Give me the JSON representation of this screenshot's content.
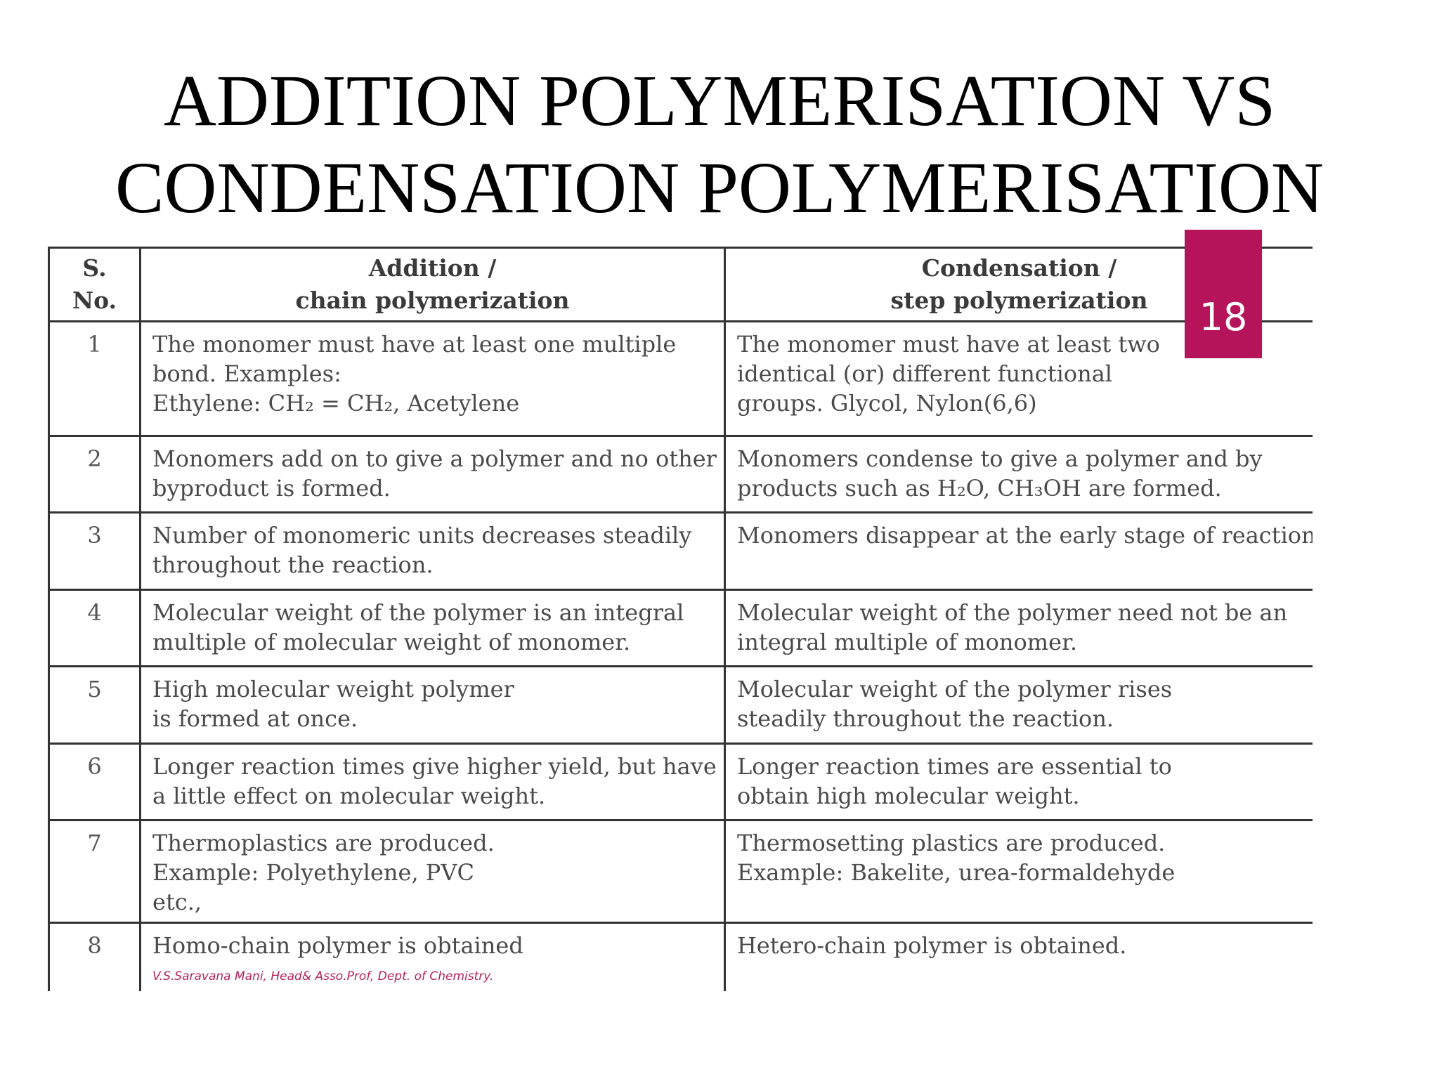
{
  "title": {
    "line1": "ADDITION POLYMERISATION VS",
    "line2": "CONDENSATION POLYMERISATION"
  },
  "page_badge": "18",
  "table": {
    "headers": {
      "sno": [
        "S.",
        "No."
      ],
      "addition": [
        "Addition /",
        "chain polymerization"
      ],
      "condensation": [
        "Condensation /",
        "step polymerization"
      ]
    },
    "rows": [
      {
        "sno": "1",
        "addition": [
          "The monomer must have at least one multiple",
          "bond. Examples:",
          "Ethylene: CH₂ = CH₂,  Acetylene"
        ],
        "condensation": [
          "The monomer must have at least two",
          "identical (or) different functional",
          "groups. Glycol, Nylon(6,6)"
        ]
      },
      {
        "sno": "2",
        "addition": [
          "Monomers add on to give a polymer and no other",
          "byproduct is formed."
        ],
        "condensation": [
          "Monomers condense to give a polymer and by",
          "products such as H₂O, CH₃OH are formed."
        ]
      },
      {
        "sno": "3",
        "addition": [
          "Number of monomeric units decreases steadily",
          "throughout the reaction."
        ],
        "condensation": [
          "Monomers disappear at the early stage of reaction."
        ]
      },
      {
        "sno": "4",
        "addition": [
          "Molecular weight of the polymer is an integral",
          "multiple of molecular weight of monomer."
        ],
        "condensation": [
          "Molecular weight of the polymer need not be an",
          "integral multiple of monomer."
        ]
      },
      {
        "sno": "5",
        "addition": [
          "High molecular weight polymer",
          "is formed at once."
        ],
        "condensation": [
          "Molecular weight of the polymer rises",
          "steadily throughout the reaction."
        ]
      },
      {
        "sno": "6",
        "addition": [
          "Longer reaction times give higher yield, but have",
          "a little effect on molecular weight."
        ],
        "condensation": [
          "Longer reaction times are essential to",
          "obtain high molecular weight."
        ]
      },
      {
        "sno": "7",
        "addition": [
          "Thermoplastics are produced.",
          "Example: Polyethylene, PVC",
          "etc.,"
        ],
        "condensation": [
          "Thermosetting plastics are produced.",
          "Example: Bakelite, urea-formaldehyde"
        ]
      },
      {
        "sno": "8",
        "addition": [
          "Homo-chain polymer is obtained"
        ],
        "condensation": [
          "Hetero-chain polymer is obtained."
        ]
      }
    ],
    "credit": "V.S.Saravana Mani, Head& Asso.Prof, Dept. of Chemistry."
  },
  "colors": {
    "badge": "#b5135a",
    "credit": "#b3235a",
    "table_text": "#4a4a4a",
    "border": "#333333"
  }
}
